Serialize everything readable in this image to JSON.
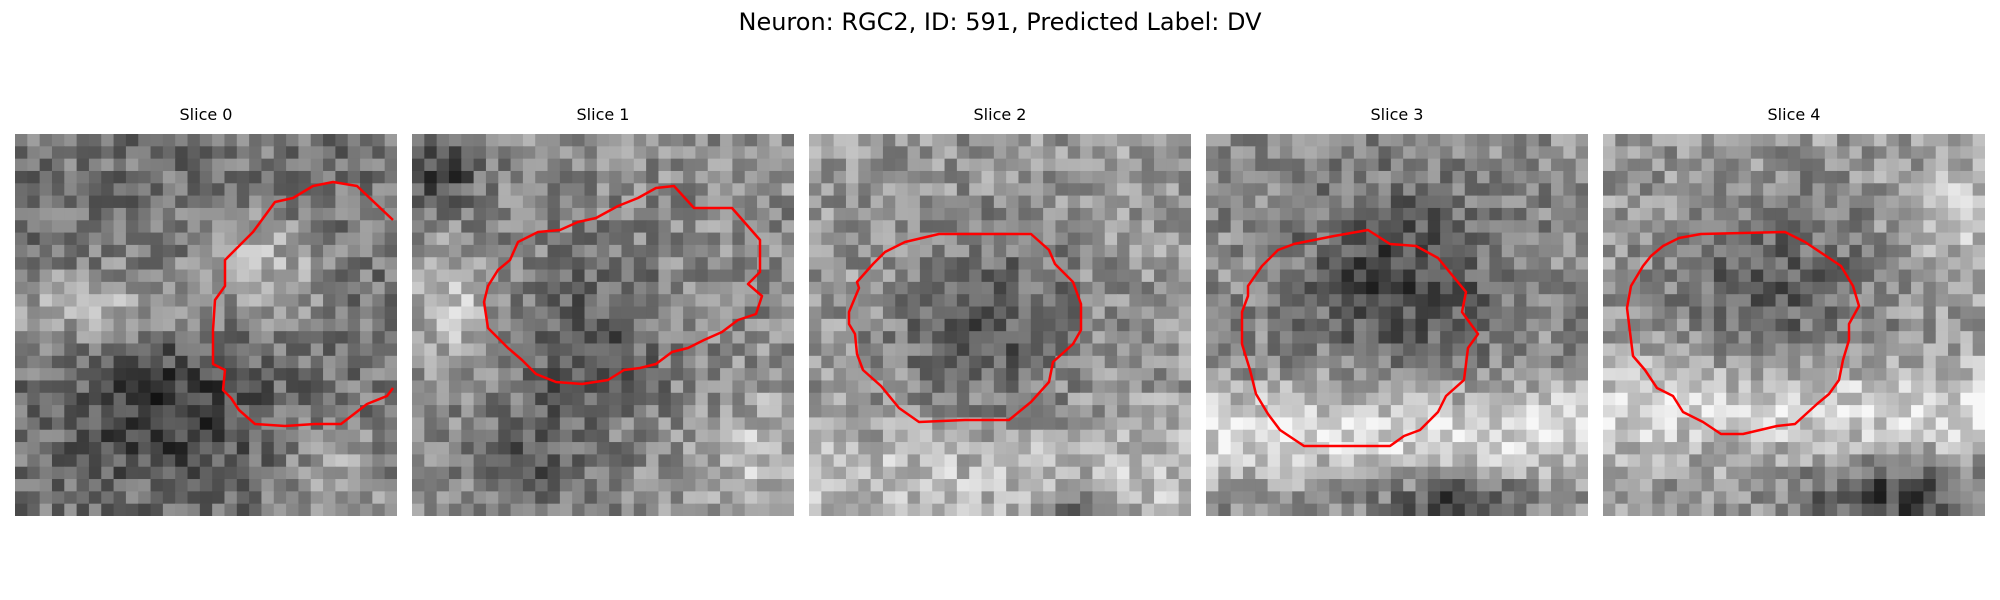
{
  "figure": {
    "title": "Neuron: RGC2, ID: 591, Predicted Label: DV"
  },
  "panels": [
    {
      "title": "Slice 0",
      "image": "grayscale-microscopy-patch",
      "brightness": "mixed",
      "contour": "open-boundary"
    },
    {
      "title": "Slice 1",
      "image": "grayscale-microscopy-patch",
      "brightness": "mixed",
      "contour": "closed-boundary"
    },
    {
      "title": "Slice 2",
      "image": "grayscale-microscopy-patch",
      "brightness": "darker-center",
      "contour": "closed-boundary"
    },
    {
      "title": "Slice 3",
      "image": "grayscale-microscopy-patch",
      "brightness": "darker-center",
      "contour": "closed-boundary"
    },
    {
      "title": "Slice 4",
      "image": "grayscale-microscopy-patch",
      "brightness": "darker-center",
      "contour": "closed-boundary"
    }
  ],
  "colors": {
    "contour": "#ff0000",
    "background": "#ffffff"
  }
}
